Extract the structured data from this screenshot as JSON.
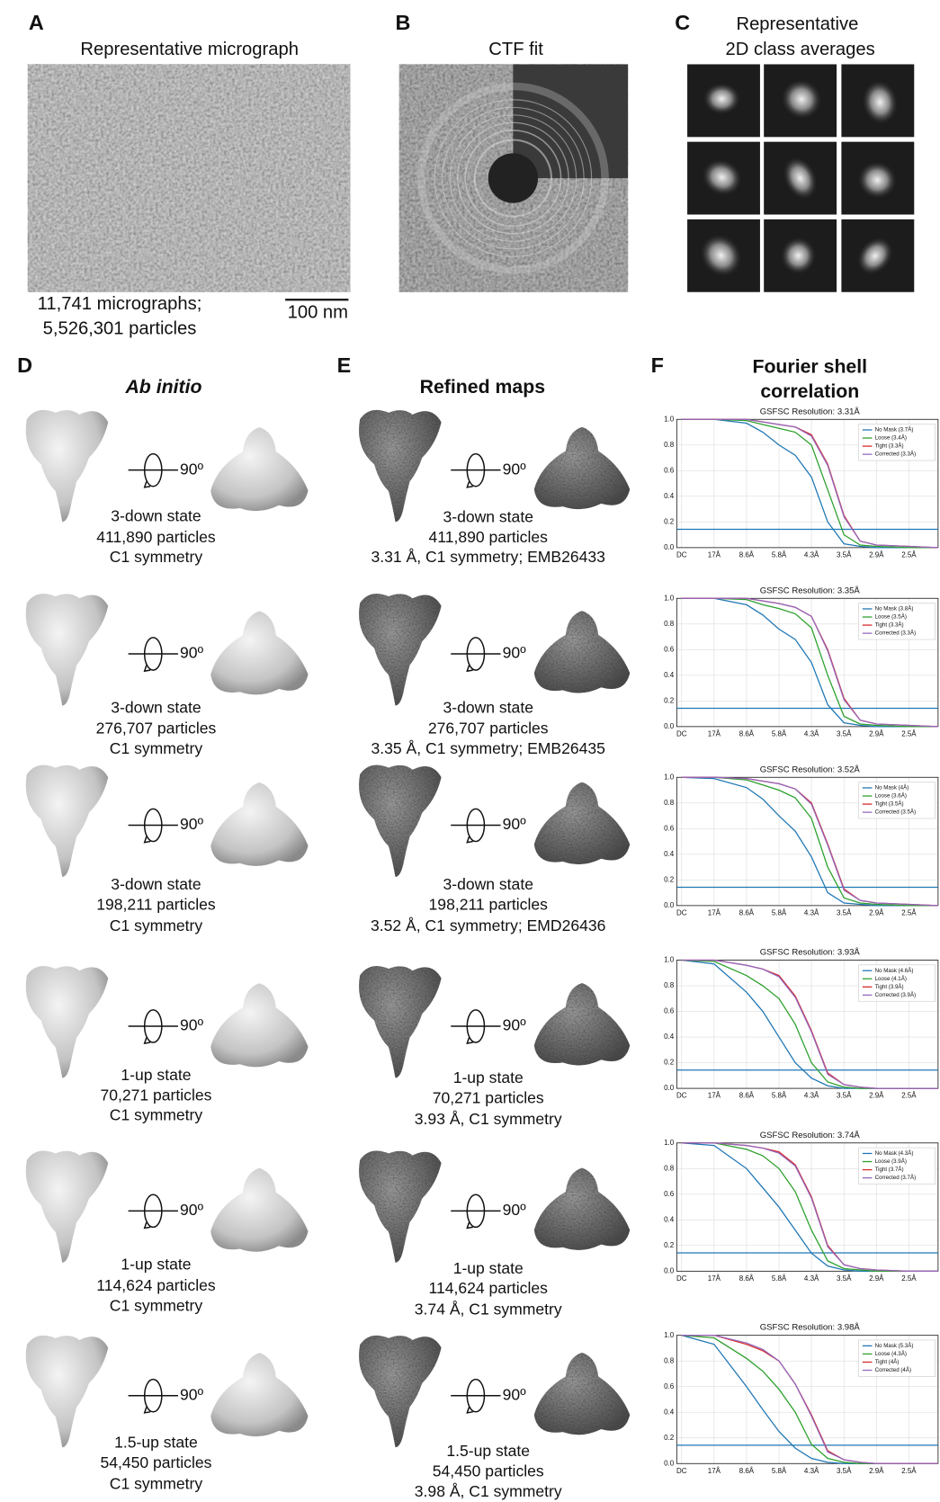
{
  "figure": {
    "panel_a": {
      "letter": "A",
      "title": "Representative micrograph",
      "caption": [
        "11,741 micrographs;",
        "5,526,301 particles"
      ],
      "scale_bar": "100 nm"
    },
    "panel_b": {
      "letter": "B",
      "title": "CTF fit"
    },
    "panel_c": {
      "letter": "C",
      "title": [
        "Representative",
        "2D class averages"
      ]
    },
    "panel_d": {
      "letter": "D",
      "title": "Ab initio"
    },
    "panel_e": {
      "letter": "E",
      "title": "Refined maps"
    },
    "panel_f": {
      "letter": "F",
      "title": [
        "Fourier shell",
        "correlation"
      ]
    },
    "rows": [
      {
        "d_caption": [
          "3-down state",
          "411,890 particles",
          "C1 symmetry"
        ],
        "d_rotation": "90º",
        "e_caption": [
          "3-down state",
          "411,890 particles",
          "3.31 Å, C1 symmetry; EMB26433"
        ],
        "e_rotation": "90º"
      },
      {
        "d_caption": [
          "3-down state",
          "276,707 particles",
          "C1 symmetry"
        ],
        "d_rotation": "90º",
        "e_caption": [
          "3-down state",
          "276,707 particles",
          "3.35 Å, C1 symmetry; EMB26435"
        ],
        "e_rotation": "90º"
      },
      {
        "d_caption": [
          "3-down state",
          "198,211 particles",
          "C1 symmetry"
        ],
        "d_rotation": "90º",
        "e_caption": [
          "3-down state",
          "198,211 particles",
          "3.52 Å, C1 symmetry; EMD26436"
        ],
        "e_rotation": "90º"
      },
      {
        "d_caption": [
          "1-up state",
          "70,271 particles",
          "C1 symmetry"
        ],
        "d_rotation": "90º",
        "e_caption": [
          "1-up state",
          "70,271 particles",
          "3.93 Å, C1 symmetry"
        ],
        "e_rotation": "90º"
      },
      {
        "d_caption": [
          "1-up state",
          "114,624 particles",
          "C1 symmetry"
        ],
        "d_rotation": "90º",
        "e_caption": [
          "1-up state",
          "114,624 particles",
          "3.74 Å, C1 symmetry"
        ],
        "e_rotation": "90º"
      },
      {
        "d_caption": [
          "1.5-up state",
          "54,450 particles",
          "C1 symmetry"
        ],
        "d_rotation": "90º",
        "e_caption": [
          "1.5-up state",
          "54,450 particles",
          "3.98 Å, C1 symmetry"
        ],
        "e_rotation": "90º"
      }
    ]
  },
  "chart_data": [
    {
      "type": "line",
      "title": "GSFSC Resolution: 3.31Å",
      "x": [
        0,
        1,
        2,
        2.5,
        3,
        3.5,
        4,
        4.5,
        5,
        5.5,
        6,
        7,
        7.9
      ],
      "series": [
        {
          "name": "No Mask (3.7Å)",
          "color": "#1f77b4",
          "values": [
            1,
            1,
            0.97,
            0.9,
            0.8,
            0.72,
            0.55,
            0.2,
            0.03,
            0.01,
            0,
            0,
            0
          ]
        },
        {
          "name": "Loose (3.4Å)",
          "color": "#2ca02c",
          "values": [
            1,
            1,
            0.99,
            0.96,
            0.93,
            0.9,
            0.8,
            0.45,
            0.1,
            0.02,
            0.01,
            0,
            0
          ]
        },
        {
          "name": "Tight (3.3Å)",
          "color": "#d62728",
          "values": [
            1,
            1,
            1,
            0.98,
            0.96,
            0.94,
            0.88,
            0.65,
            0.25,
            0.05,
            0.02,
            0.01,
            0
          ]
        },
        {
          "name": "Corrected (3.3Å)",
          "color": "#9467bd",
          "values": [
            1,
            1,
            1,
            0.98,
            0.96,
            0.94,
            0.87,
            0.64,
            0.24,
            0.05,
            0.02,
            0.01,
            0
          ]
        }
      ],
      "xlim": [
        -0.15,
        7.9
      ],
      "xticks": [
        {
          "value": 0,
          "label": "DC"
        },
        {
          "value": 1,
          "label": "17Å"
        },
        {
          "value": 2,
          "label": "8.6Å"
        },
        {
          "value": 3,
          "label": "5.8Å"
        },
        {
          "value": 4,
          "label": "4.3Å"
        },
        {
          "value": 5,
          "label": "3.5Å"
        },
        {
          "value": 6,
          "label": "2.9Å"
        },
        {
          "value": 7,
          "label": "2.5Å"
        }
      ],
      "ylim": [
        0,
        1
      ],
      "yticks": [
        {
          "value": 0,
          "label": "0.0"
        },
        0.2,
        0.4,
        0.6,
        0.8,
        {
          "value": 1,
          "label": "1.0"
        }
      ],
      "threshold": 0.143,
      "grid": true
    },
    {
      "type": "line",
      "title": "GSFSC Resolution: 3.35Å",
      "x": [
        0,
        1,
        2,
        2.5,
        3,
        3.5,
        4,
        4.5,
        5,
        5.5,
        6,
        7,
        7.9
      ],
      "series": [
        {
          "name": "No Mask (3.8Å)",
          "color": "#1f77b4",
          "values": [
            1,
            1,
            0.95,
            0.87,
            0.76,
            0.68,
            0.5,
            0.17,
            0.03,
            0.01,
            0,
            0,
            0
          ]
        },
        {
          "name": "Loose (3.5Å)",
          "color": "#2ca02c",
          "values": [
            1,
            1,
            0.99,
            0.95,
            0.92,
            0.88,
            0.77,
            0.4,
            0.08,
            0.02,
            0.01,
            0,
            0
          ]
        },
        {
          "name": "Tight (3.3Å)",
          "color": "#d62728",
          "values": [
            1,
            1,
            1,
            0.98,
            0.96,
            0.93,
            0.86,
            0.6,
            0.22,
            0.05,
            0.02,
            0.01,
            0
          ]
        },
        {
          "name": "Corrected (3.3Å)",
          "color": "#9467bd",
          "values": [
            1,
            1,
            1,
            0.98,
            0.96,
            0.93,
            0.86,
            0.59,
            0.21,
            0.05,
            0.02,
            0.01,
            0
          ]
        }
      ],
      "xlim": [
        -0.15,
        7.9
      ],
      "xticks": [
        {
          "value": 0,
          "label": "DC"
        },
        {
          "value": 1,
          "label": "17Å"
        },
        {
          "value": 2,
          "label": "8.6Å"
        },
        {
          "value": 3,
          "label": "5.8Å"
        },
        {
          "value": 4,
          "label": "4.3Å"
        },
        {
          "value": 5,
          "label": "3.5Å"
        },
        {
          "value": 6,
          "label": "2.9Å"
        },
        {
          "value": 7,
          "label": "2.5Å"
        }
      ],
      "ylim": [
        0,
        1
      ],
      "yticks": [
        {
          "value": 0,
          "label": "0.0"
        },
        0.2,
        0.4,
        0.6,
        0.8,
        {
          "value": 1,
          "label": "1.0"
        }
      ],
      "threshold": 0.143,
      "grid": true
    },
    {
      "type": "line",
      "title": "GSFSC Resolution: 3.52Å",
      "x": [
        0,
        1,
        2,
        2.5,
        3,
        3.5,
        4,
        4.5,
        5,
        5.5,
        6,
        7,
        7.9
      ],
      "series": [
        {
          "name": "No Mask (4Å)",
          "color": "#1f77b4",
          "values": [
            1,
            0.99,
            0.92,
            0.83,
            0.7,
            0.58,
            0.38,
            0.1,
            0.02,
            0.01,
            0,
            0,
            0
          ]
        },
        {
          "name": "Loose (3.6Å)",
          "color": "#2ca02c",
          "values": [
            1,
            1,
            0.98,
            0.94,
            0.9,
            0.84,
            0.68,
            0.3,
            0.06,
            0.02,
            0.01,
            0,
            0
          ]
        },
        {
          "name": "Tight (3.5Å)",
          "color": "#d62728",
          "values": [
            1,
            1,
            0.99,
            0.97,
            0.95,
            0.91,
            0.8,
            0.48,
            0.13,
            0.04,
            0.02,
            0.01,
            0
          ]
        },
        {
          "name": "Corrected (3.5Å)",
          "color": "#9467bd",
          "values": [
            1,
            1,
            0.99,
            0.97,
            0.95,
            0.91,
            0.79,
            0.47,
            0.12,
            0.04,
            0.02,
            0.01,
            0
          ]
        }
      ],
      "xlim": [
        -0.15,
        7.9
      ],
      "xticks": [
        {
          "value": 0,
          "label": "DC"
        },
        {
          "value": 1,
          "label": "17Å"
        },
        {
          "value": 2,
          "label": "8.6Å"
        },
        {
          "value": 3,
          "label": "5.8Å"
        },
        {
          "value": 4,
          "label": "4.3Å"
        },
        {
          "value": 5,
          "label": "3.5Å"
        },
        {
          "value": 6,
          "label": "2.9Å"
        },
        {
          "value": 7,
          "label": "2.5Å"
        }
      ],
      "ylim": [
        0,
        1
      ],
      "yticks": [
        {
          "value": 0,
          "label": "0.0"
        },
        0.2,
        0.4,
        0.6,
        0.8,
        {
          "value": 1,
          "label": "1.0"
        }
      ],
      "threshold": 0.143,
      "grid": true
    },
    {
      "type": "line",
      "title": "GSFSC Resolution: 3.93Å",
      "x": [
        0,
        1,
        2,
        2.5,
        3,
        3.5,
        4,
        4.5,
        5,
        5.5,
        6,
        7,
        7.9
      ],
      "series": [
        {
          "name": "No Mask (4.6Å)",
          "color": "#1f77b4",
          "values": [
            1,
            0.97,
            0.75,
            0.6,
            0.4,
            0.2,
            0.08,
            0.02,
            0,
            0,
            0,
            0,
            0
          ]
        },
        {
          "name": "Loose (4.1Å)",
          "color": "#2ca02c",
          "values": [
            1,
            0.99,
            0.88,
            0.8,
            0.7,
            0.5,
            0.2,
            0.05,
            0.01,
            0,
            0,
            0,
            0
          ]
        },
        {
          "name": "Tight (3.9Å)",
          "color": "#d62728",
          "values": [
            1,
            1,
            0.96,
            0.93,
            0.88,
            0.72,
            0.45,
            0.12,
            0.03,
            0.01,
            0,
            0,
            0
          ]
        },
        {
          "name": "Corrected (3.9Å)",
          "color": "#9467bd",
          "values": [
            1,
            1,
            0.96,
            0.93,
            0.87,
            0.71,
            0.44,
            0.11,
            0.03,
            0.01,
            0,
            0,
            0
          ]
        }
      ],
      "xlim": [
        -0.15,
        7.9
      ],
      "xticks": [
        {
          "value": 0,
          "label": "DC"
        },
        {
          "value": 1,
          "label": "17Å"
        },
        {
          "value": 2,
          "label": "8.6Å"
        },
        {
          "value": 3,
          "label": "5.8Å"
        },
        {
          "value": 4,
          "label": "4.3Å"
        },
        {
          "value": 5,
          "label": "3.5Å"
        },
        {
          "value": 6,
          "label": "2.9Å"
        },
        {
          "value": 7,
          "label": "2.5Å"
        }
      ],
      "ylim": [
        0,
        1
      ],
      "yticks": [
        {
          "value": 0,
          "label": "0.0"
        },
        0.2,
        0.4,
        0.6,
        0.8,
        {
          "value": 1,
          "label": "1.0"
        }
      ],
      "threshold": 0.143,
      "grid": true
    },
    {
      "type": "line",
      "title": "GSFSC Resolution: 3.74Å",
      "x": [
        0,
        1,
        2,
        2.5,
        3,
        3.5,
        4,
        4.5,
        5,
        5.5,
        6,
        7,
        7.9
      ],
      "series": [
        {
          "name": "No Mask (4.3Å)",
          "color": "#1f77b4",
          "values": [
            1,
            0.98,
            0.8,
            0.65,
            0.5,
            0.32,
            0.14,
            0.04,
            0.01,
            0,
            0,
            0,
            0
          ]
        },
        {
          "name": "Loose (3.9Å)",
          "color": "#2ca02c",
          "values": [
            1,
            1,
            0.95,
            0.9,
            0.8,
            0.62,
            0.32,
            0.08,
            0.02,
            0.01,
            0,
            0,
            0
          ]
        },
        {
          "name": "Tight (3.7Å)",
          "color": "#d62728",
          "values": [
            1,
            1,
            0.98,
            0.96,
            0.93,
            0.83,
            0.58,
            0.2,
            0.05,
            0.02,
            0.01,
            0,
            0
          ]
        },
        {
          "name": "Corrected (3.7Å)",
          "color": "#9467bd",
          "values": [
            1,
            1,
            0.98,
            0.96,
            0.92,
            0.82,
            0.57,
            0.19,
            0.05,
            0.02,
            0.01,
            0,
            0
          ]
        }
      ],
      "xlim": [
        -0.15,
        7.9
      ],
      "xticks": [
        {
          "value": 0,
          "label": "DC"
        },
        {
          "value": 1,
          "label": "17Å"
        },
        {
          "value": 2,
          "label": "8.6Å"
        },
        {
          "value": 3,
          "label": "5.8Å"
        },
        {
          "value": 4,
          "label": "4.3Å"
        },
        {
          "value": 5,
          "label": "3.5Å"
        },
        {
          "value": 6,
          "label": "2.9Å"
        },
        {
          "value": 7,
          "label": "2.5Å"
        }
      ],
      "ylim": [
        0,
        1
      ],
      "yticks": [
        {
          "value": 0,
          "label": "0.0"
        },
        0.2,
        0.4,
        0.6,
        0.8,
        {
          "value": 1,
          "label": "1.0"
        }
      ],
      "threshold": 0.143,
      "grid": true
    },
    {
      "type": "line",
      "title": "GSFSC Resolution: 3.98Å",
      "x": [
        0,
        1,
        2,
        2.5,
        3,
        3.5,
        4,
        4.5,
        5,
        5.5,
        6,
        7,
        7.9
      ],
      "series": [
        {
          "name": "No Mask (5.3Å)",
          "color": "#1f77b4",
          "values": [
            1,
            0.93,
            0.6,
            0.42,
            0.25,
            0.12,
            0.04,
            0.01,
            0,
            0,
            0,
            0,
            0
          ]
        },
        {
          "name": "Loose (4.3Å)",
          "color": "#2ca02c",
          "values": [
            1,
            0.98,
            0.82,
            0.72,
            0.58,
            0.4,
            0.15,
            0.04,
            0.01,
            0,
            0,
            0,
            0
          ]
        },
        {
          "name": "Tight (4Å)",
          "color": "#d62728",
          "values": [
            1,
            1,
            0.93,
            0.88,
            0.8,
            0.62,
            0.38,
            0.1,
            0.03,
            0.01,
            0,
            0,
            0
          ]
        },
        {
          "name": "Corrected (4Å)",
          "color": "#9467bd",
          "values": [
            1,
            1,
            0.94,
            0.89,
            0.8,
            0.62,
            0.37,
            0.09,
            0.03,
            0.01,
            0,
            0,
            0
          ]
        }
      ],
      "xlim": [
        -0.15,
        7.9
      ],
      "xticks": [
        {
          "value": 0,
          "label": "DC"
        },
        {
          "value": 1,
          "label": "17Å"
        },
        {
          "value": 2,
          "label": "8.6Å"
        },
        {
          "value": 3,
          "label": "5.8Å"
        },
        {
          "value": 4,
          "label": "4.3Å"
        },
        {
          "value": 5,
          "label": "3.5Å"
        },
        {
          "value": 6,
          "label": "2.9Å"
        },
        {
          "value": 7,
          "label": "2.5Å"
        }
      ],
      "ylim": [
        0,
        1
      ],
      "yticks": [
        {
          "value": 0,
          "label": "0.0"
        },
        0.2,
        0.4,
        0.6,
        0.8,
        {
          "value": 1,
          "label": "1.0"
        }
      ],
      "threshold": 0.143,
      "grid": true
    }
  ]
}
